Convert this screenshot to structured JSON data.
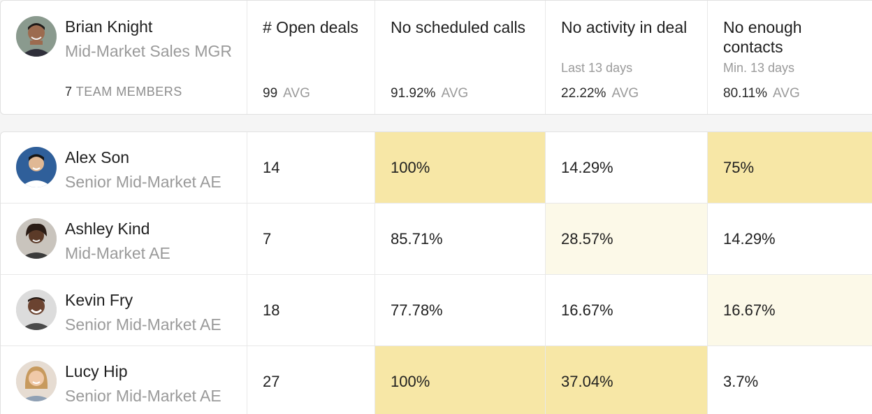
{
  "manager": {
    "name": "Brian Knight",
    "role": "Mid-Market Sales MGR",
    "team_count": "7",
    "team_label": "TEAM MEMBERS"
  },
  "columns": [
    {
      "title": "# Open deals",
      "subtitle": "",
      "avg_value": "99",
      "avg_label": "AVG"
    },
    {
      "title": "No scheduled calls",
      "subtitle": "",
      "avg_value": "91.92%",
      "avg_label": "AVG"
    },
    {
      "title": "No activity in deal",
      "subtitle": "Last 13 days",
      "avg_value": "22.22%",
      "avg_label": "AVG"
    },
    {
      "title": "No enough contacts",
      "subtitle": "Min. 13 days",
      "avg_value": "80.11%",
      "avg_label": "AVG"
    }
  ],
  "colors": {
    "highlight_strong": "#f7e7a6",
    "highlight_light": "#fcf9e8"
  },
  "reps": [
    {
      "name": "Alex Son",
      "role": "Senior Mid-Market AE",
      "open_deals": "14",
      "no_calls": "100%",
      "no_activity": "14.29%",
      "no_contacts": "75%"
    },
    {
      "name": "Ashley Kind",
      "role": "Mid-Market AE",
      "open_deals": "7",
      "no_calls": "85.71%",
      "no_activity": "28.57%",
      "no_contacts": "14.29%"
    },
    {
      "name": "Kevin Fry",
      "role": "Senior Mid-Market AE",
      "open_deals": "18",
      "no_calls": "77.78%",
      "no_activity": "16.67%",
      "no_contacts": "16.67%"
    },
    {
      "name": "Lucy Hip",
      "role": "Senior Mid-Market AE",
      "open_deals": "27",
      "no_calls": "100%",
      "no_activity": "37.04%",
      "no_contacts": "3.7%"
    }
  ]
}
